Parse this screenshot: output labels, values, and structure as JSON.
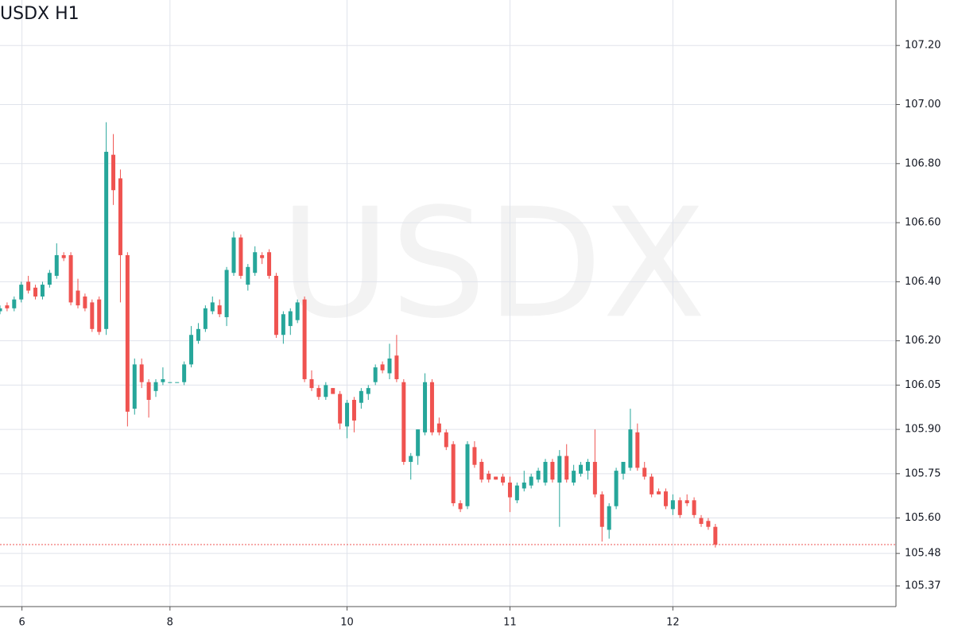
{
  "chart_data": {
    "type": "candlestick",
    "title": "USDX H1",
    "watermark": "USDX",
    "up_color": "#26a69a",
    "down_color": "#ef5350",
    "last_price_line": true,
    "grid": true,
    "open": [
      106.3,
      106.32,
      106.31,
      106.34,
      106.4,
      106.38,
      106.35,
      106.39,
      106.42,
      106.49,
      106.49,
      106.37,
      106.35,
      106.33,
      106.34,
      106.24,
      106.83,
      106.75,
      106.49,
      105.97,
      106.12,
      106.06,
      106.03,
      106.06,
      106.06,
      106.06,
      106.06,
      106.12,
      106.2,
      106.24,
      106.3,
      106.32,
      106.28,
      106.43,
      106.55,
      106.39,
      106.43,
      106.49,
      106.5,
      106.42,
      106.22,
      106.25,
      106.27,
      106.34,
      106.07,
      106.04,
      106.01,
      106.04,
      106.02,
      105.91,
      106.0,
      105.99,
      106.02,
      106.06,
      106.12,
      106.09,
      106.15,
      106.06,
      105.79,
      105.81,
      105.89,
      106.06,
      105.92,
      105.89,
      105.85,
      105.65,
      105.64,
      105.84,
      105.79,
      105.75,
      105.74,
      105.74,
      105.72,
      105.66,
      105.7,
      105.71,
      105.73,
      105.72,
      105.79,
      105.72,
      105.81,
      105.72,
      105.75,
      105.76,
      105.79,
      105.68,
      105.56,
      105.64,
      105.75,
      105.77,
      105.89,
      105.77,
      105.74,
      105.69,
      105.69,
      105.63,
      105.66,
      105.66,
      105.66,
      105.6,
      105.59,
      105.57
    ],
    "high": [
      106.32,
      106.33,
      106.35,
      106.4,
      106.42,
      106.39,
      106.4,
      106.44,
      106.53,
      106.5,
      106.5,
      106.41,
      106.36,
      106.34,
      106.35,
      106.94,
      106.9,
      106.78,
      106.5,
      106.14,
      106.14,
      106.07,
      106.07,
      106.11,
      106.06,
      106.06,
      106.13,
      106.25,
      106.26,
      106.32,
      106.35,
      106.34,
      106.45,
      106.57,
      106.56,
      106.46,
      106.52,
      106.5,
      106.51,
      106.43,
      106.3,
      106.31,
      106.34,
      106.35,
      106.1,
      106.05,
      106.06,
      106.04,
      106.03,
      106.0,
      106.01,
      106.04,
      106.05,
      106.12,
      106.13,
      106.19,
      106.22,
      106.07,
      105.82,
      105.9,
      106.09,
      106.07,
      105.94,
      105.9,
      105.86,
      105.66,
      105.86,
      105.86,
      105.8,
      105.76,
      105.74,
      105.75,
      105.74,
      105.72,
      105.76,
      105.75,
      105.77,
      105.8,
      105.8,
      105.83,
      105.85,
      105.78,
      105.79,
      105.8,
      105.9,
      105.69,
      105.65,
      105.77,
      105.79,
      105.97,
      105.92,
      105.79,
      105.75,
      105.7,
      105.7,
      105.68,
      105.67,
      105.68,
      105.67,
      105.61,
      105.6,
      105.58
    ],
    "low": [
      106.29,
      106.3,
      106.3,
      106.33,
      106.36,
      106.34,
      106.34,
      106.38,
      106.41,
      106.47,
      106.32,
      106.31,
      106.3,
      106.23,
      106.22,
      106.22,
      106.66,
      106.33,
      105.91,
      105.95,
      106.04,
      105.94,
      106.01,
      106.05,
      106.06,
      106.06,
      106.05,
      106.11,
      106.19,
      106.23,
      106.29,
      106.28,
      106.25,
      106.42,
      106.41,
      106.37,
      106.42,
      106.46,
      106.41,
      106.21,
      106.19,
      106.22,
      106.26,
      106.06,
      106.03,
      106.0,
      106.0,
      106.02,
      105.9,
      105.87,
      105.89,
      105.97,
      106.0,
      106.05,
      106.09,
      106.07,
      106.06,
      105.78,
      105.73,
      105.78,
      105.88,
      105.88,
      105.88,
      105.83,
      105.64,
      105.62,
      105.63,
      105.77,
      105.72,
      105.72,
      105.73,
      105.71,
      105.62,
      105.65,
      105.69,
      105.7,
      105.72,
      105.71,
      105.72,
      105.57,
      105.72,
      105.71,
      105.74,
      105.73,
      105.67,
      105.52,
      105.53,
      105.63,
      105.73,
      105.76,
      105.76,
      105.73,
      105.67,
      105.68,
      105.63,
      105.61,
      105.6,
      105.64,
      105.6,
      105.57,
      105.56,
      105.5
    ],
    "close": [
      106.31,
      106.31,
      106.34,
      106.39,
      106.37,
      106.35,
      106.39,
      106.43,
      106.49,
      106.48,
      106.33,
      106.32,
      106.31,
      106.24,
      106.23,
      106.84,
      106.71,
      106.49,
      105.96,
      106.12,
      106.06,
      106.0,
      106.06,
      106.07,
      106.06,
      106.06,
      106.12,
      106.22,
      106.24,
      106.31,
      106.33,
      106.29,
      106.44,
      106.55,
      106.42,
      106.45,
      106.5,
      106.48,
      106.42,
      106.22,
      106.29,
      106.3,
      106.33,
      106.07,
      106.04,
      106.01,
      106.05,
      106.02,
      105.92,
      105.99,
      105.93,
      106.03,
      106.04,
      106.11,
      106.1,
      106.14,
      106.07,
      105.79,
      105.81,
      105.9,
      106.06,
      105.89,
      105.89,
      105.84,
      105.65,
      105.63,
      105.85,
      105.78,
      105.73,
      105.73,
      105.73,
      105.72,
      105.67,
      105.71,
      105.72,
      105.74,
      105.76,
      105.79,
      105.73,
      105.81,
      105.73,
      105.76,
      105.78,
      105.79,
      105.68,
      105.57,
      105.64,
      105.76,
      105.79,
      105.9,
      105.77,
      105.74,
      105.68,
      105.68,
      105.64,
      105.66,
      105.61,
      105.65,
      105.61,
      105.58,
      105.57,
      105.51
    ],
    "xlim": [
      0,
      126.5
    ],
    "xticks": [
      {
        "value": 3.1,
        "label": "6"
      },
      {
        "value": 24,
        "label": "8"
      },
      {
        "value": 49,
        "label": "10"
      },
      {
        "value": 72,
        "label": "11"
      },
      {
        "value": 95,
        "label": "12"
      }
    ],
    "ylim": [
      105.3,
      107.354
    ],
    "yticks": [
      {
        "value": 107.2,
        "label": "107.20"
      },
      {
        "value": 107.0,
        "label": "107.00"
      },
      {
        "value": 106.8,
        "label": "106.80"
      },
      {
        "value": 106.6,
        "label": "106.60"
      },
      {
        "value": 106.4,
        "label": "106.40"
      },
      {
        "value": 106.2,
        "label": "106.20"
      },
      {
        "value": 106.05,
        "label": "106.05"
      },
      {
        "value": 105.9,
        "label": "105.90"
      },
      {
        "value": 105.75,
        "label": "105.75"
      },
      {
        "value": 105.6,
        "label": "105.60"
      },
      {
        "value": 105.48,
        "label": "105.48"
      },
      {
        "value": 105.37,
        "label": "105.37"
      }
    ]
  }
}
